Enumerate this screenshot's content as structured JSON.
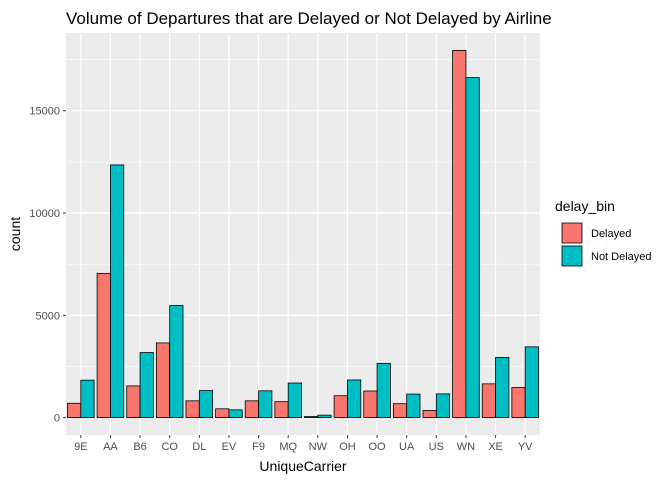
{
  "chart_data": {
    "type": "bar",
    "title": "Volume of Departures that are Delayed or Not Delayed by Airline",
    "xlabel": "UniqueCarrier",
    "ylabel": "count",
    "categories": [
      "9E",
      "AA",
      "B6",
      "CO",
      "DL",
      "EV",
      "F9",
      "MQ",
      "NW",
      "OH",
      "OO",
      "UA",
      "US",
      "WN",
      "XE",
      "YV"
    ],
    "series": [
      {
        "name": "Delayed",
        "color": "#F8766D",
        "values": [
          700,
          7050,
          1550,
          3650,
          820,
          430,
          820,
          780,
          50,
          1070,
          1300,
          680,
          350,
          17950,
          1650,
          1470
        ]
      },
      {
        "name": "Not Delayed",
        "color": "#00BFC4",
        "values": [
          1830,
          12350,
          3180,
          5480,
          1320,
          380,
          1310,
          1690,
          120,
          1840,
          2650,
          1150,
          1160,
          16620,
          2940,
          3460
        ]
      }
    ],
    "ylim": [
      -850,
      18800
    ],
    "yticks": [
      0,
      5000,
      10000,
      15000
    ],
    "ytick_labels": [
      "0",
      "5000",
      "10000",
      "15000"
    ],
    "grid": true,
    "legend": {
      "title": "delay_bin",
      "position": "right"
    }
  }
}
